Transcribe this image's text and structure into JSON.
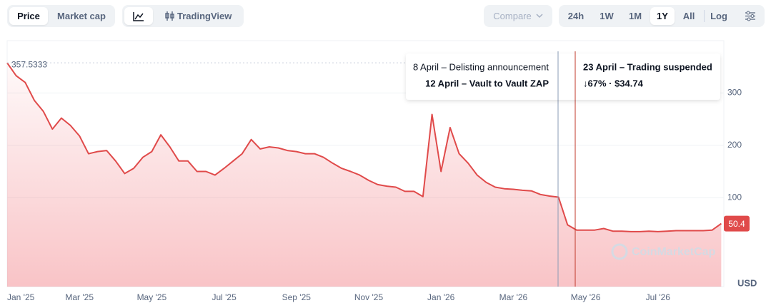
{
  "toolbar": {
    "view_tabs": [
      "Price",
      "Market cap"
    ],
    "tradingview": "TradingView",
    "compare": "Compare",
    "ranges": [
      "24h",
      "1W",
      "1M",
      "1Y",
      "All"
    ],
    "log": "Log"
  },
  "chart_data": {
    "type": "line",
    "categories": [
      "Jan '25",
      null,
      null,
      null,
      null,
      null,
      null,
      null,
      "Mar '25",
      null,
      null,
      null,
      null,
      null,
      null,
      null,
      "May '25",
      null,
      null,
      null,
      null,
      null,
      null,
      null,
      "Jul '25",
      null,
      null,
      null,
      null,
      null,
      null,
      null,
      "Sep '25",
      null,
      null,
      null,
      null,
      null,
      null,
      null,
      "Nov '25",
      null,
      null,
      null,
      null,
      null,
      null,
      null,
      "Jan '26",
      null,
      null,
      null,
      null,
      null,
      null,
      null,
      "Mar '26",
      null,
      null,
      null,
      null,
      null,
      null,
      null,
      "May '26",
      null,
      null,
      null,
      null,
      null,
      null,
      null,
      "Jul '26",
      null,
      null,
      null,
      null,
      null,
      null,
      null
    ],
    "series": [
      {
        "name": "Price",
        "color": "#e04a4a",
        "values": [
          357.5333,
          333,
          320,
          286,
          265,
          231,
          252,
          238,
          218,
          184,
          188,
          190,
          170,
          146,
          156,
          177,
          188,
          220,
          197,
          170,
          170,
          150,
          150,
          143,
          156,
          170,
          184,
          211,
          193,
          197,
          195,
          190,
          188,
          184,
          184,
          177,
          166,
          156,
          150,
          143,
          133,
          125,
          122,
          120,
          112,
          112,
          102,
          259,
          150,
          234,
          184,
          166,
          143,
          129,
          120,
          117,
          116,
          114,
          113,
          106,
          103,
          101,
          48,
          38,
          38,
          38,
          41,
          36,
          36,
          35,
          35,
          36,
          35,
          36,
          37,
          37,
          37,
          37,
          38,
          50.4
        ]
      }
    ],
    "ylim": [
      -70,
      400
    ],
    "yticks": [
      100,
      200,
      300
    ],
    "grid": true,
    "y_unit": "USD",
    "annotations": [
      "8 April – Delisting announcement",
      "12 April – Vault to Vault ZAP",
      "23 April – Trading suspended"
    ],
    "change_label": "↓67% · $34.74",
    "watermark": "CoinMarketCap"
  }
}
